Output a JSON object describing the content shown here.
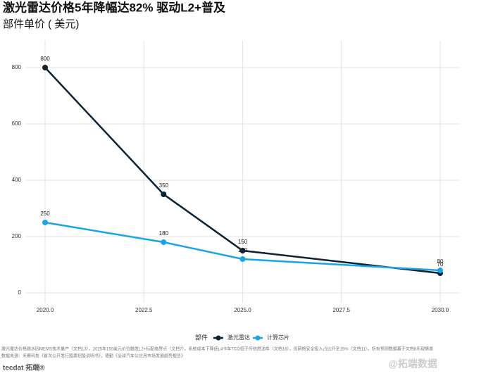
{
  "chart_data": {
    "type": "line",
    "title": "激光雷达价格5年降幅达82%  驱动L2+普及",
    "subtitle": "部件单价 ( 美元)",
    "x": [
      2020,
      2023,
      2025,
      2030
    ],
    "series": [
      {
        "name": "激光雷达",
        "color": "#0d2233",
        "values": [
          800,
          350,
          150,
          70
        ]
      },
      {
        "name": "计算芯片",
        "color": "#1aa3e6",
        "values": [
          250,
          180,
          120,
          80
        ]
      }
    ],
    "xlim": [
      2019.5,
      2030.5
    ],
    "xticks": [
      {
        "value": 2020,
        "label": "2020.0"
      },
      {
        "value": 2022.5,
        "label": "2022.5"
      },
      {
        "value": 2025,
        "label": "2025.0"
      },
      {
        "value": 2027.5,
        "label": "2027.5"
      },
      {
        "value": 2030,
        "label": "2030.0"
      }
    ],
    "ylim": [
      -35,
      895
    ],
    "yticks": [
      0,
      200,
      400,
      600,
      800
    ],
    "grid": true,
    "legend_title": "部件",
    "legend_position": "bottom",
    "caption": [
      "激光雷达价格跳水因MEMS技术量产（文档13），2025年150美元价位触发L2+标配临界点（文档7）。系统成本下降使L4卡车TCO低于传统燃油车（文档16），但网络安全投入占比升至15%（文档11）。所有预测数据基于文档8乐观情景",
      "数据来源：禾赛科技《首次公开发行股票招股说明书》，德勤《全球汽车公应用市场发展趋势报告》"
    ],
    "logo": "tecdat 拓端®",
    "watermark": "@拓端数据"
  }
}
